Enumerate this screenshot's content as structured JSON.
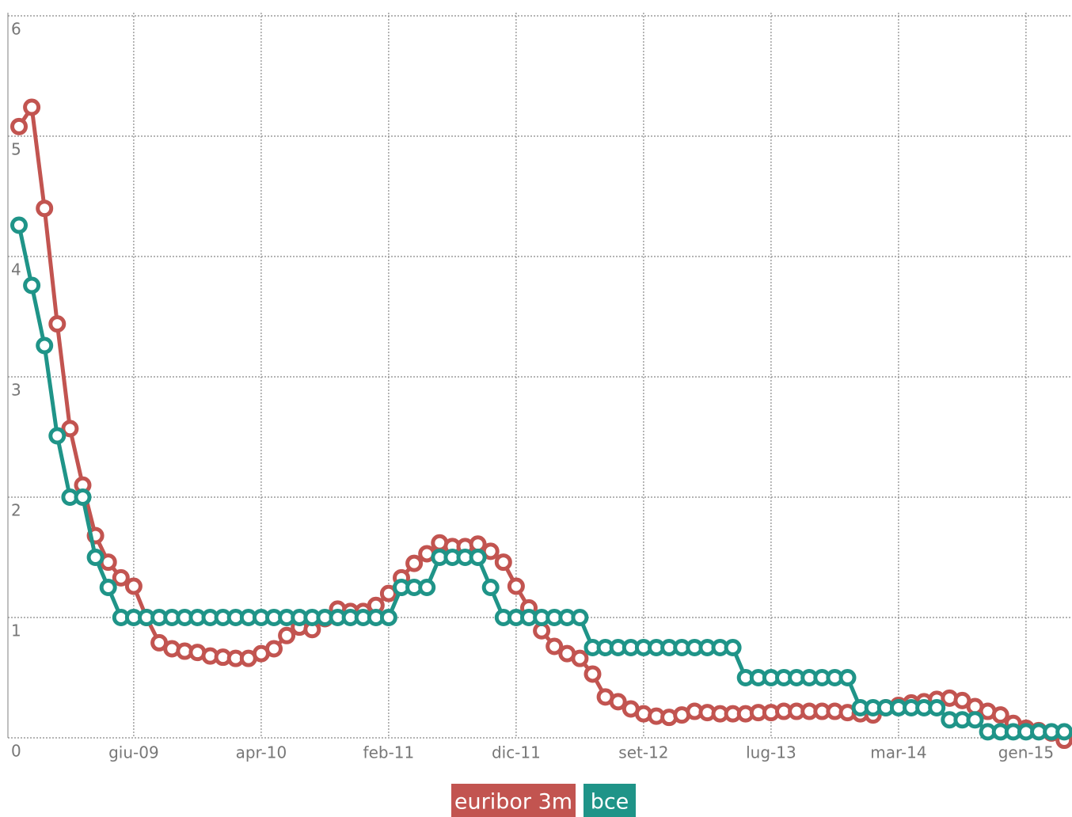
{
  "chart_data": {
    "type": "line",
    "categories": [
      null,
      null,
      null,
      null,
      null,
      null,
      null,
      null,
      null,
      "giu-09",
      null,
      null,
      null,
      null,
      null,
      null,
      null,
      null,
      null,
      "apr-10",
      null,
      null,
      null,
      null,
      null,
      null,
      null,
      null,
      null,
      "feb-11",
      null,
      null,
      null,
      null,
      null,
      null,
      null,
      null,
      null,
      "dic-11",
      null,
      null,
      null,
      null,
      null,
      null,
      null,
      null,
      null,
      "set-12",
      null,
      null,
      null,
      null,
      null,
      null,
      null,
      null,
      null,
      "lug-13",
      null,
      null,
      null,
      null,
      null,
      null,
      null,
      null,
      null,
      "mar-14",
      null,
      null,
      null,
      null,
      null,
      null,
      null,
      null,
      null,
      "gen-15",
      null,
      null,
      null
    ],
    "series": [
      {
        "name": "euribor 3m",
        "color": "#c25450",
        "values": [
          5.08,
          5.24,
          4.4,
          3.44,
          2.57,
          2.1,
          1.68,
          1.46,
          1.33,
          1.26,
          1.0,
          0.79,
          0.74,
          0.72,
          0.71,
          0.68,
          0.67,
          0.66,
          0.66,
          0.7,
          0.74,
          0.85,
          0.92,
          0.9,
          0.99,
          1.07,
          1.05,
          1.05,
          1.1,
          1.2,
          1.33,
          1.45,
          1.53,
          1.62,
          1.59,
          1.59,
          1.61,
          1.55,
          1.46,
          1.26,
          1.08,
          0.89,
          0.76,
          0.7,
          0.66,
          0.53,
          0.34,
          0.3,
          0.24,
          0.2,
          0.18,
          0.17,
          0.19,
          0.22,
          0.21,
          0.2,
          0.2,
          0.2,
          0.21,
          0.21,
          0.22,
          0.22,
          0.22,
          0.22,
          0.22,
          0.21,
          0.2,
          0.19,
          0.25,
          0.27,
          0.29,
          0.3,
          0.32,
          0.33,
          0.31,
          0.26,
          0.22,
          0.19,
          0.12,
          0.08,
          0.06,
          0.04,
          -0.02
        ]
      },
      {
        "name": "bce",
        "color": "#1f9488",
        "values": [
          4.26,
          3.76,
          3.26,
          2.51,
          2.0,
          2.0,
          1.5,
          1.25,
          1.0,
          1.0,
          1.0,
          1.0,
          1.0,
          1.0,
          1.0,
          1.0,
          1.0,
          1.0,
          1.0,
          1.0,
          1.0,
          1.0,
          1.0,
          1.0,
          1.0,
          1.0,
          1.0,
          1.0,
          1.0,
          1.0,
          1.25,
          1.25,
          1.25,
          1.5,
          1.5,
          1.5,
          1.5,
          1.25,
          1.0,
          1.0,
          1.0,
          1.0,
          1.0,
          1.0,
          1.0,
          0.75,
          0.75,
          0.75,
          0.75,
          0.75,
          0.75,
          0.75,
          0.75,
          0.75,
          0.75,
          0.75,
          0.75,
          0.5,
          0.5,
          0.5,
          0.5,
          0.5,
          0.5,
          0.5,
          0.5,
          0.5,
          0.25,
          0.25,
          0.25,
          0.25,
          0.25,
          0.25,
          0.25,
          0.15,
          0.15,
          0.15,
          0.05,
          0.05,
          0.05,
          0.05,
          0.05,
          0.05,
          0.05
        ]
      }
    ],
    "ylim": [
      0,
      6
    ],
    "yticks": [
      0,
      1,
      2,
      3,
      4,
      5,
      6
    ],
    "grid": true
  }
}
